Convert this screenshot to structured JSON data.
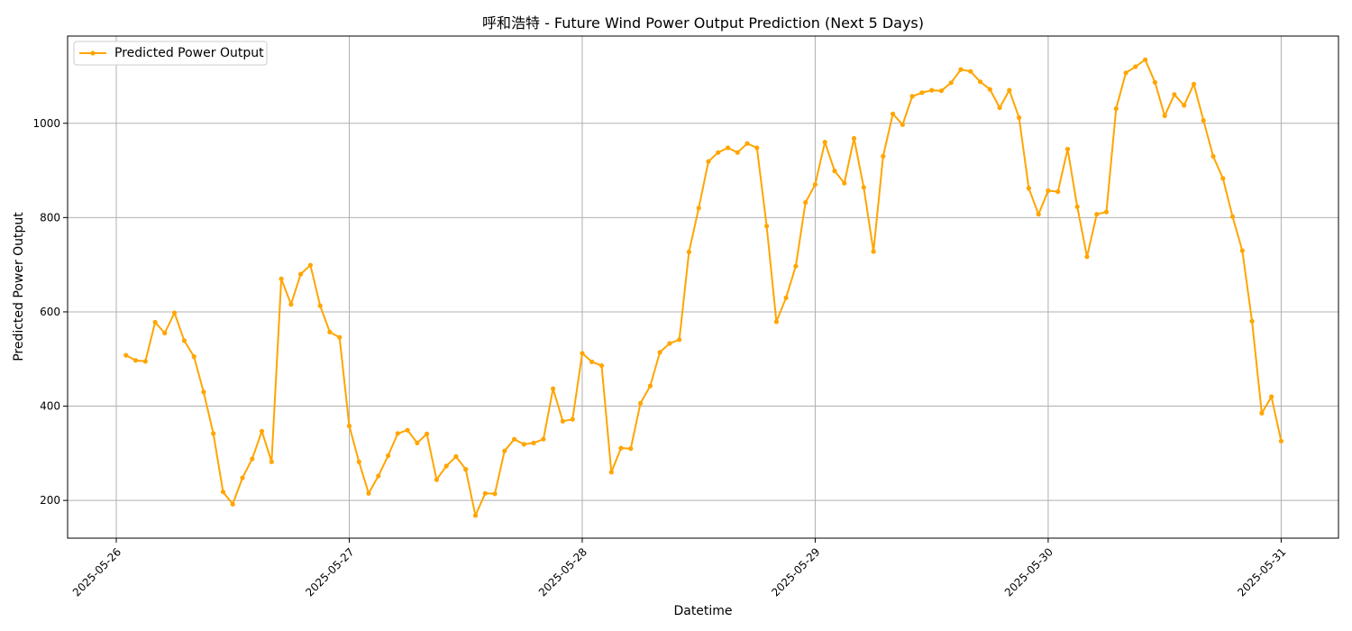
{
  "chart_data": {
    "type": "line",
    "title": "呼和浩特 - Future Wind Power Output Prediction (Next 5 Days)",
    "xlabel": "Datetime",
    "ylabel": "Predicted Power Output",
    "x_start": "2025-05-26 01:00",
    "x_step_hours": 1,
    "x_ticks": [
      "2025-05-26",
      "2025-05-27",
      "2025-05-28",
      "2025-05-29",
      "2025-05-30",
      "2025-05-31"
    ],
    "y_ticks": [
      200,
      400,
      600,
      800,
      1000
    ],
    "ylim": [
      120,
      1185
    ],
    "grid": true,
    "legend_position": "top-left",
    "series": [
      {
        "name": "Predicted Power Output",
        "color": "#FFA500",
        "marker": "circle",
        "values": [
          508,
          497,
          495,
          578,
          555,
          598,
          539,
          505,
          430,
          342,
          218,
          192,
          248,
          288,
          347,
          282,
          670,
          616,
          680,
          699,
          613,
          557,
          546,
          358,
          282,
          215,
          252,
          295,
          342,
          349,
          322,
          341,
          244,
          273,
          293,
          266,
          168,
          215,
          214,
          305,
          330,
          319,
          322,
          330,
          437,
          368,
          372,
          512,
          494,
          486,
          260,
          311,
          310,
          406,
          443,
          514,
          533,
          541,
          727,
          820,
          919,
          938,
          948,
          938,
          957,
          948,
          782,
          579,
          630,
          697,
          832,
          870,
          960,
          899,
          873,
          968,
          864,
          728,
          930,
          1020,
          997,
          1057,
          1065,
          1070,
          1069,
          1086,
          1114,
          1110,
          1088,
          1072,
          1033,
          1070,
          1012,
          862,
          807,
          857,
          855,
          945,
          823,
          717,
          807,
          812,
          1031,
          1107,
          1120,
          1135,
          1087,
          1016,
          1061,
          1038,
          1083,
          1006,
          930,
          883,
          802,
          730,
          580,
          385,
          420,
          326
        ]
      }
    ]
  }
}
